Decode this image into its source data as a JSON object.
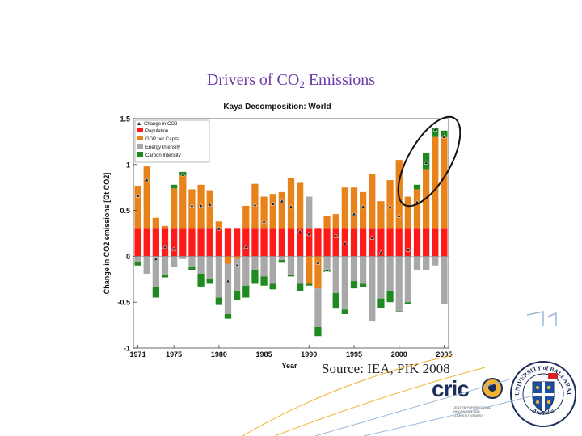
{
  "slide": {
    "title_pre": "Drivers of CO",
    "title_sub": "2",
    "title_post": " Emissions",
    "source": "Source: IEA, PIK 2008"
  },
  "logos": {
    "cric_text": "cric",
    "cric_subtitle": "CENTRE FOR REGIONAL INNOVATION AND COMPETITIVENESS",
    "university_top": "UNIVERSITY of BALLARAT",
    "university_bottom": "Australia"
  },
  "colors": {
    "population": "#ff1a1a",
    "gdp": "#e8821a",
    "energy": "#a8a8a8",
    "carbon": "#1f8a1f",
    "title": "#6e3aa8"
  },
  "chart_data": {
    "type": "bar",
    "stacked": true,
    "title": "Kaya Decomposition: World",
    "xlabel": "Year",
    "ylabel": "Change in CO2 emissions [Gt CO2]",
    "ylim": [
      -1,
      1.5
    ],
    "yticks": [
      -1,
      -0.5,
      0,
      0.5,
      1,
      1.5
    ],
    "ytick_labels": [
      "-1",
      "-0.5",
      "0",
      "0.5",
      "1",
      "1.5"
    ],
    "xlim": [
      1971,
      2005
    ],
    "xticks": [
      1971,
      1975,
      1980,
      1985,
      1990,
      1995,
      2000,
      2005
    ],
    "legend_position": "top-left",
    "legend": [
      "Change in CO2",
      "Population",
      "GDP per Capita",
      "Energy Intensity",
      "Carbon Intensity"
    ],
    "x": [
      1971,
      1972,
      1973,
      1974,
      1975,
      1976,
      1977,
      1978,
      1979,
      1980,
      1981,
      1982,
      1983,
      1984,
      1985,
      1986,
      1987,
      1988,
      1989,
      1990,
      1991,
      1992,
      1993,
      1994,
      1995,
      1996,
      1997,
      1998,
      1999,
      2000,
      2001,
      2002,
      2003,
      2004,
      2005
    ],
    "series": [
      {
        "name": "Population",
        "values": [
          0.3,
          0.3,
          0.3,
          0.3,
          0.3,
          0.3,
          0.3,
          0.3,
          0.3,
          0.3,
          0.3,
          0.3,
          0.3,
          0.3,
          0.3,
          0.3,
          0.3,
          0.3,
          0.3,
          0.3,
          0.3,
          0.3,
          0.3,
          0.3,
          0.3,
          0.3,
          0.3,
          0.3,
          0.3,
          0.3,
          0.3,
          0.3,
          0.3,
          0.3,
          0.3
        ]
      },
      {
        "name": "GDP per Capita",
        "values": [
          0.47,
          0.68,
          0.12,
          0.03,
          0.44,
          0.58,
          0.43,
          0.48,
          0.42,
          0.08,
          -0.08,
          -0.03,
          0.25,
          0.49,
          0.35,
          0.38,
          0.4,
          0.55,
          0.5,
          -0.3,
          -0.35,
          0.14,
          0.16,
          0.45,
          0.45,
          0.4,
          0.6,
          0.3,
          0.53,
          0.75,
          0.35,
          0.43,
          0.65,
          1.0,
          1.0
        ]
      },
      {
        "name": "Energy Intensity",
        "values": [
          -0.06,
          -0.19,
          -0.33,
          -0.2,
          -0.12,
          -0.03,
          -0.12,
          -0.19,
          -0.25,
          -0.45,
          -0.55,
          -0.35,
          -0.32,
          -0.15,
          -0.22,
          -0.3,
          -0.04,
          -0.2,
          -0.3,
          0.35,
          -0.42,
          -0.15,
          -0.4,
          -0.58,
          -0.27,
          -0.3,
          -0.7,
          -0.46,
          -0.38,
          -0.6,
          -0.5,
          -0.15,
          -0.15,
          -0.1,
          -0.52
        ]
      },
      {
        "name": "Carbon Intensity",
        "values": [
          -0.04,
          0.0,
          -0.12,
          -0.03,
          0.04,
          0.04,
          -0.03,
          -0.14,
          -0.05,
          -0.08,
          -0.05,
          -0.1,
          -0.13,
          -0.15,
          -0.1,
          -0.06,
          -0.03,
          -0.02,
          -0.08,
          -0.02,
          -0.1,
          -0.02,
          -0.17,
          -0.05,
          -0.08,
          -0.04,
          -0.01,
          -0.1,
          -0.12,
          -0.01,
          -0.02,
          0.05,
          0.18,
          0.1,
          0.07
        ]
      }
    ],
    "change_in_co2": [
      0.66,
      0.83,
      -0.03,
      0.1,
      0.08,
      0.89,
      0.55,
      0.55,
      0.56,
      0.3,
      -0.27,
      -0.1,
      0.1,
      0.56,
      0.38,
      0.57,
      0.6,
      0.54,
      0.27,
      0.24,
      -0.07,
      -0.15,
      0.22,
      0.14,
      0.46,
      0.54,
      0.2,
      0.04,
      0.54,
      0.44,
      0.07,
      0.59,
      1.02,
      1.38,
      1.3
    ]
  }
}
